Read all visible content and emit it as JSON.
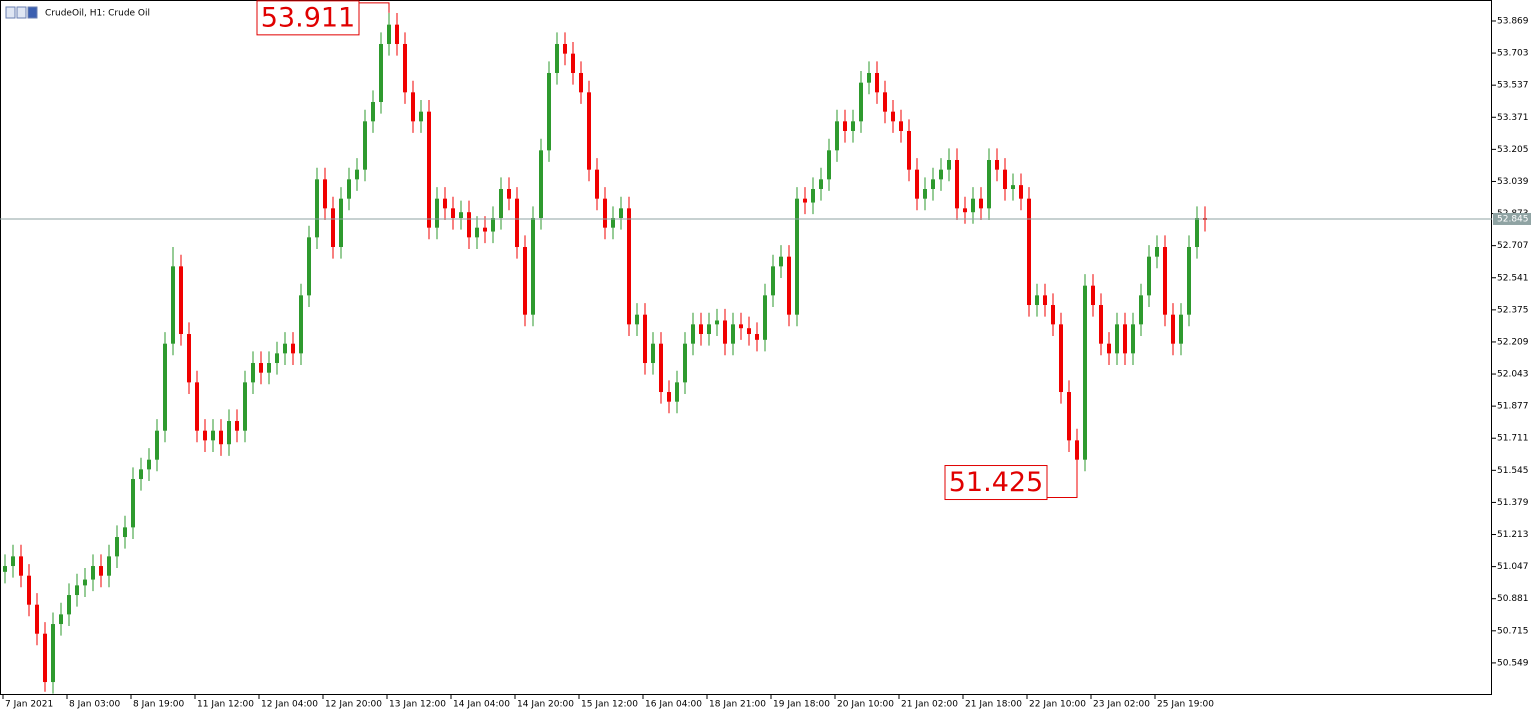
{
  "chart_data": {
    "type": "candlestick",
    "title": "CrudeOil, H1:  Crude Oil",
    "up_color": "#2e9a2e",
    "down_color": "#f00000",
    "last_price_color": "#8fa3a3",
    "ylim": [
      50.383,
      53.962
    ],
    "yticks": [
      50.549,
      50.715,
      50.881,
      51.047,
      51.213,
      51.379,
      51.545,
      51.711,
      51.877,
      52.043,
      52.209,
      52.375,
      52.541,
      52.707,
      52.873,
      53.039,
      53.205,
      53.371,
      53.537,
      53.703,
      53.869
    ],
    "last_price": 52.845,
    "annotations": [
      53.911,
      51.425
    ],
    "categories": [
      "7 Jan 2021",
      null,
      null,
      null,
      null,
      null,
      null,
      null,
      "8 Jan 03:00",
      null,
      null,
      null,
      null,
      null,
      null,
      null,
      "8 Jan 19:00",
      null,
      null,
      null,
      null,
      null,
      null,
      null,
      "11 Jan 12:00",
      null,
      null,
      null,
      null,
      null,
      null,
      null,
      "12 Jan 04:00",
      null,
      null,
      null,
      null,
      null,
      null,
      null,
      "12 Jan 20:00",
      null,
      null,
      null,
      null,
      null,
      null,
      null,
      "13 Jan 12:00",
      null,
      null,
      null,
      null,
      null,
      null,
      null,
      "14 Jan 04:00",
      null,
      null,
      null,
      null,
      null,
      null,
      null,
      "14 Jan 20:00",
      null,
      null,
      null,
      null,
      null,
      null,
      null,
      "15 Jan 12:00",
      null,
      null,
      null,
      null,
      null,
      null,
      null,
      "16 Jan 04:00",
      null,
      null,
      null,
      null,
      null,
      null,
      null,
      "18 Jan 21:00",
      null,
      null,
      null,
      null,
      null,
      null,
      null,
      "19 Jan 18:00",
      null,
      null,
      null,
      null,
      null,
      null,
      null,
      "20 Jan 10:00",
      null,
      null,
      null,
      null,
      null,
      null,
      null,
      "21 Jan 02:00",
      null,
      null,
      null,
      null,
      null,
      null,
      null,
      "21 Jan 18:00",
      null,
      null,
      null,
      null,
      null,
      null,
      null,
      "22 Jan 10:00",
      null,
      null,
      null,
      null,
      null,
      null,
      null,
      "23 Jan 02:00",
      null,
      null,
      null,
      null,
      null,
      null,
      null,
      "25 Jan 19:00",
      null,
      null,
      null,
      null,
      null,
      null
    ],
    "open": [
      51.02,
      51.05,
      51.1,
      51.0,
      50.85,
      50.7,
      50.45,
      50.75,
      50.8,
      50.9,
      50.95,
      50.98,
      51.05,
      51.0,
      51.1,
      51.2,
      51.25,
      51.5,
      51.55,
      51.6,
      51.75,
      52.2,
      52.6,
      52.25,
      52.0,
      51.75,
      51.7,
      51.75,
      51.68,
      51.8,
      51.75,
      52.0,
      52.1,
      52.05,
      52.1,
      52.15,
      52.2,
      52.15,
      52.45,
      52.75,
      53.05,
      52.9,
      52.7,
      52.95,
      53.05,
      53.1,
      53.35,
      53.45,
      53.75,
      53.85,
      53.75,
      53.5,
      53.35,
      53.4,
      52.8,
      52.95,
      52.9,
      52.85,
      52.88,
      52.75,
      52.8,
      52.78,
      52.85,
      53.0,
      52.95,
      52.7,
      52.35,
      52.85,
      53.2,
      53.6,
      53.75,
      53.7,
      53.6,
      53.5,
      53.1,
      52.95,
      52.8,
      52.85,
      52.9,
      52.3,
      52.35,
      52.1,
      52.2,
      51.95,
      51.9,
      52.0,
      52.2,
      52.3,
      52.25,
      52.3,
      52.32,
      52.2,
      52.3,
      52.28,
      52.25,
      52.22,
      52.45,
      52.6,
      52.65,
      52.35,
      52.95,
      52.93,
      53.0,
      53.05,
      53.2,
      53.35,
      53.3,
      53.35,
      53.55,
      53.6,
      53.5,
      53.4,
      53.35,
      53.3,
      53.1,
      52.95,
      53.0,
      53.05,
      53.1,
      53.15,
      52.9,
      52.88,
      52.95,
      52.9,
      53.15,
      53.1,
      53.0,
      53.02,
      52.95,
      52.4,
      52.45,
      52.4,
      52.3,
      51.95,
      51.7,
      51.6,
      52.5,
      52.4,
      52.2,
      52.15,
      52.3,
      52.15,
      52.3,
      52.45,
      52.65,
      52.7,
      52.35,
      52.2,
      52.35,
      52.7,
      52.85
    ],
    "high": [
      51.11,
      51.16,
      51.16,
      51.06,
      50.91,
      50.76,
      50.81,
      50.86,
      50.96,
      51.01,
      51.04,
      51.11,
      51.11,
      51.16,
      51.26,
      51.31,
      51.56,
      51.61,
      51.66,
      51.81,
      52.26,
      52.7,
      52.66,
      52.31,
      52.06,
      51.81,
      51.81,
      51.81,
      51.86,
      51.86,
      52.06,
      52.16,
      52.16,
      52.16,
      52.21,
      52.26,
      52.26,
      52.51,
      52.81,
      53.11,
      53.11,
      52.96,
      53.01,
      53.11,
      53.16,
      53.41,
      53.51,
      53.81,
      53.911,
      53.91,
      53.81,
      53.56,
      53.46,
      53.46,
      53.01,
      53.01,
      52.96,
      52.94,
      52.94,
      52.86,
      52.86,
      52.91,
      53.06,
      53.06,
      53.01,
      52.76,
      52.91,
      53.26,
      53.66,
      53.81,
      53.81,
      53.76,
      53.66,
      53.56,
      53.16,
      53.01,
      52.91,
      52.96,
      52.96,
      52.41,
      52.41,
      52.26,
      52.26,
      52.01,
      52.06,
      52.26,
      52.36,
      52.36,
      52.36,
      52.38,
      52.38,
      52.36,
      52.36,
      52.34,
      52.31,
      52.51,
      52.66,
      52.71,
      52.71,
      53.01,
      53.01,
      53.06,
      53.11,
      53.26,
      53.41,
      53.41,
      53.41,
      53.61,
      53.66,
      53.66,
      53.56,
      53.46,
      53.41,
      53.36,
      53.16,
      53.06,
      53.11,
      53.16,
      53.21,
      53.21,
      52.96,
      53.01,
      53.01,
      53.21,
      53.21,
      53.16,
      53.08,
      53.08,
      53.01,
      52.51,
      52.51,
      52.46,
      52.36,
      52.01,
      51.76,
      52.56,
      52.56,
      52.46,
      52.26,
      52.36,
      52.36,
      52.36,
      52.51,
      52.71,
      52.76,
      52.76,
      52.41,
      52.41,
      52.76,
      52.91,
      52.91
    ],
    "low": [
      50.96,
      50.99,
      50.94,
      50.79,
      50.64,
      50.4,
      50.39,
      50.69,
      50.74,
      50.84,
      50.89,
      50.92,
      50.94,
      50.94,
      51.04,
      51.14,
      51.19,
      51.44,
      51.49,
      51.54,
      51.69,
      52.14,
      52.19,
      51.94,
      51.69,
      51.64,
      51.64,
      51.62,
      51.62,
      51.69,
      51.69,
      51.94,
      51.99,
      51.99,
      52.04,
      52.09,
      52.09,
      52.09,
      52.39,
      52.69,
      52.84,
      52.64,
      52.64,
      52.89,
      52.99,
      53.04,
      53.29,
      53.39,
      53.69,
      53.69,
      53.44,
      53.29,
      53.29,
      52.74,
      52.74,
      52.84,
      52.79,
      52.79,
      52.69,
      52.69,
      52.72,
      52.72,
      52.79,
      52.89,
      52.64,
      52.29,
      52.29,
      52.79,
      53.14,
      53.54,
      53.64,
      53.54,
      53.44,
      53.04,
      52.89,
      52.74,
      52.74,
      52.79,
      52.24,
      52.24,
      52.04,
      52.04,
      51.89,
      51.84,
      51.84,
      51.94,
      52.14,
      52.19,
      52.19,
      52.24,
      52.14,
      52.14,
      52.22,
      52.19,
      52.16,
      52.16,
      52.39,
      52.54,
      52.29,
      52.29,
      52.87,
      52.87,
      52.94,
      52.99,
      53.14,
      53.24,
      53.24,
      53.29,
      53.49,
      53.44,
      53.34,
      53.29,
      53.24,
      53.04,
      52.89,
      52.89,
      52.94,
      52.99,
      53.04,
      52.84,
      52.82,
      52.82,
      52.84,
      52.84,
      53.04,
      52.94,
      52.94,
      52.89,
      52.34,
      52.34,
      52.34,
      52.24,
      51.89,
      51.64,
      51.425,
      51.54,
      52.34,
      52.14,
      52.09,
      52.09,
      52.09,
      52.09,
      52.24,
      52.39,
      52.59,
      52.29,
      52.14,
      52.14,
      52.29,
      52.64,
      52.78
    ],
    "close": [
      51.05,
      51.1,
      51.0,
      50.85,
      50.7,
      50.45,
      50.75,
      50.8,
      50.9,
      50.95,
      50.98,
      51.05,
      51.0,
      51.1,
      51.2,
      51.25,
      51.5,
      51.55,
      51.6,
      51.75,
      52.2,
      52.6,
      52.25,
      52.0,
      51.75,
      51.7,
      51.75,
      51.68,
      51.8,
      51.75,
      52.0,
      52.1,
      52.05,
      52.1,
      52.15,
      52.2,
      52.15,
      52.45,
      52.75,
      53.05,
      52.9,
      52.7,
      52.95,
      53.05,
      53.1,
      53.35,
      53.45,
      53.75,
      53.85,
      53.75,
      53.5,
      53.35,
      53.4,
      52.8,
      52.95,
      52.9,
      52.85,
      52.88,
      52.75,
      52.8,
      52.78,
      52.85,
      53.0,
      52.95,
      52.7,
      52.35,
      52.85,
      53.2,
      53.6,
      53.75,
      53.7,
      53.6,
      53.5,
      53.1,
      52.95,
      52.8,
      52.85,
      52.9,
      52.3,
      52.35,
      52.1,
      52.2,
      51.95,
      51.9,
      52.0,
      52.2,
      52.3,
      52.25,
      52.3,
      52.32,
      52.2,
      52.3,
      52.28,
      52.25,
      52.22,
      52.45,
      52.6,
      52.65,
      52.35,
      52.95,
      52.93,
      53.0,
      53.05,
      53.2,
      53.35,
      53.3,
      53.35,
      53.55,
      53.6,
      53.5,
      53.4,
      53.35,
      53.3,
      53.1,
      52.95,
      53.0,
      53.05,
      53.1,
      53.15,
      52.9,
      52.88,
      52.95,
      52.9,
      53.15,
      53.1,
      53.0,
      53.02,
      52.95,
      52.4,
      52.45,
      52.4,
      52.3,
      51.95,
      51.7,
      51.6,
      52.5,
      52.4,
      52.2,
      52.15,
      52.3,
      52.15,
      52.3,
      52.45,
      52.65,
      52.7,
      52.35,
      52.2,
      52.35,
      52.7,
      52.85,
      52.84
    ]
  }
}
